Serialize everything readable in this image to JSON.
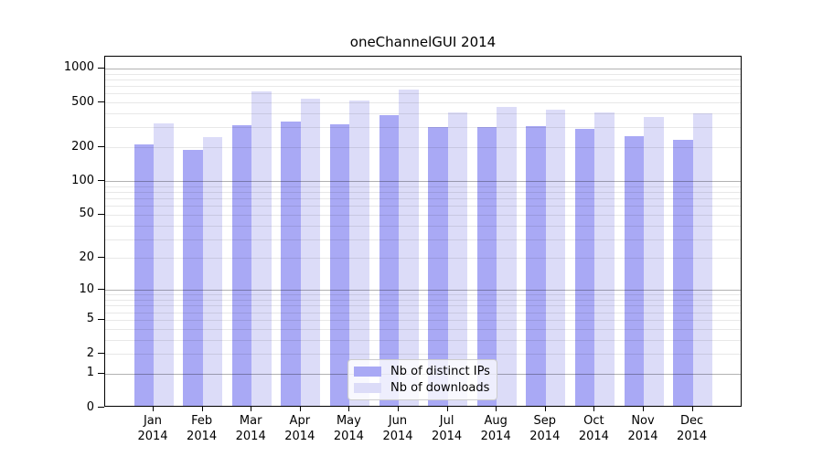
{
  "title": "oneChannelGUI 2014",
  "colors": {
    "distinct_ips_bar": "#a9a9f5",
    "downloads_bar": "#dcdcf8",
    "axis": "#000000",
    "grid_minor": "rgba(0,0,0,0.09)",
    "grid_major": "rgba(0,0,0,0.30)",
    "legend_background": "rgba(255,255,255,0.8)",
    "legend_border": "#cccccc",
    "background": "#ffffff"
  },
  "legend": {
    "position": "lower center",
    "items": [
      {
        "label": "Nb of distinct IPs",
        "color": "#a9a9f5"
      },
      {
        "label": "Nb of downloads",
        "color": "#dcdcf8"
      }
    ]
  },
  "chart_data": {
    "type": "bar",
    "title": "oneChannelGUI 2014",
    "categories": [
      "Jan 2014",
      "Feb 2014",
      "Mar 2014",
      "Apr 2014",
      "May 2014",
      "Jun 2014",
      "Jul 2014",
      "Aug 2014",
      "Sep 2014",
      "Oct 2014",
      "Nov 2014",
      "Dec 2014"
    ],
    "series": [
      {
        "name": "Nb of distinct IPs",
        "color": "#a9a9f5",
        "values": [
          205,
          182,
          303,
          327,
          307,
          369,
          294,
          289,
          298,
          280,
          241,
          225
        ]
      },
      {
        "name": "Nb of downloads",
        "color": "#dcdcf8",
        "values": [
          315,
          237,
          607,
          523,
          498,
          630,
          396,
          439,
          419,
          393,
          355,
          389
        ]
      }
    ],
    "xlabel": "",
    "ylabel": "",
    "y_axis": {
      "scale": "log10(value+1)",
      "tick_values": [
        1000,
        500,
        200,
        100,
        50,
        20,
        10,
        5,
        2,
        1,
        0
      ],
      "min": 0,
      "max_tick": 1000,
      "grid": "minor lines at 2-9 per decade, darker major lines at powers of 10"
    }
  }
}
